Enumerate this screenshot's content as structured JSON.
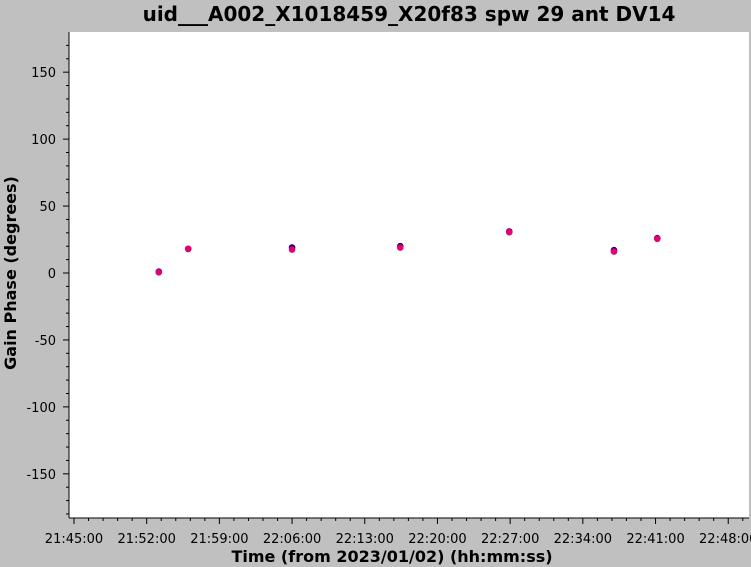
{
  "chart_data": {
    "type": "scatter",
    "title": "uid___A002_X1018459_X20f83 spw 29 ant DV14",
    "xlabel": "Time (from 2023/01/02) (hh:mm:ss)",
    "ylabel": "Gain Phase (degrees)",
    "x_ticks": [
      "21:45:00",
      "21:52:00",
      "21:59:00",
      "22:06:00",
      "22:13:00",
      "22:20:00",
      "22:27:00",
      "22:34:00",
      "22:41:00",
      "22:48:00"
    ],
    "y_ticks": [
      "150",
      "100",
      "50",
      "0",
      "-50",
      "-100",
      "-150"
    ],
    "xlim": [
      "21:45:00",
      "22:50:00"
    ],
    "ylim": [
      -183,
      180
    ],
    "grid": false,
    "series": [
      {
        "color": "#000080",
        "points": [
          {
            "x": "21:53:10",
            "y": 1
          },
          {
            "x": "21:56:00",
            "y": 18
          },
          {
            "x": "22:06:00",
            "y": 19
          },
          {
            "x": "22:16:25",
            "y": 20
          },
          {
            "x": "22:26:55",
            "y": 31
          },
          {
            "x": "22:37:00",
            "y": 17
          },
          {
            "x": "22:41:10",
            "y": 26
          }
        ]
      },
      {
        "color": "#e8006e",
        "points": [
          {
            "x": "21:53:10",
            "y": 0.5
          },
          {
            "x": "21:56:00",
            "y": 18
          },
          {
            "x": "22:06:00",
            "y": 17.5
          },
          {
            "x": "22:16:25",
            "y": 19
          },
          {
            "x": "22:26:55",
            "y": 30.5
          },
          {
            "x": "22:37:00",
            "y": 16
          },
          {
            "x": "22:41:10",
            "y": 25.5
          }
        ]
      }
    ]
  }
}
